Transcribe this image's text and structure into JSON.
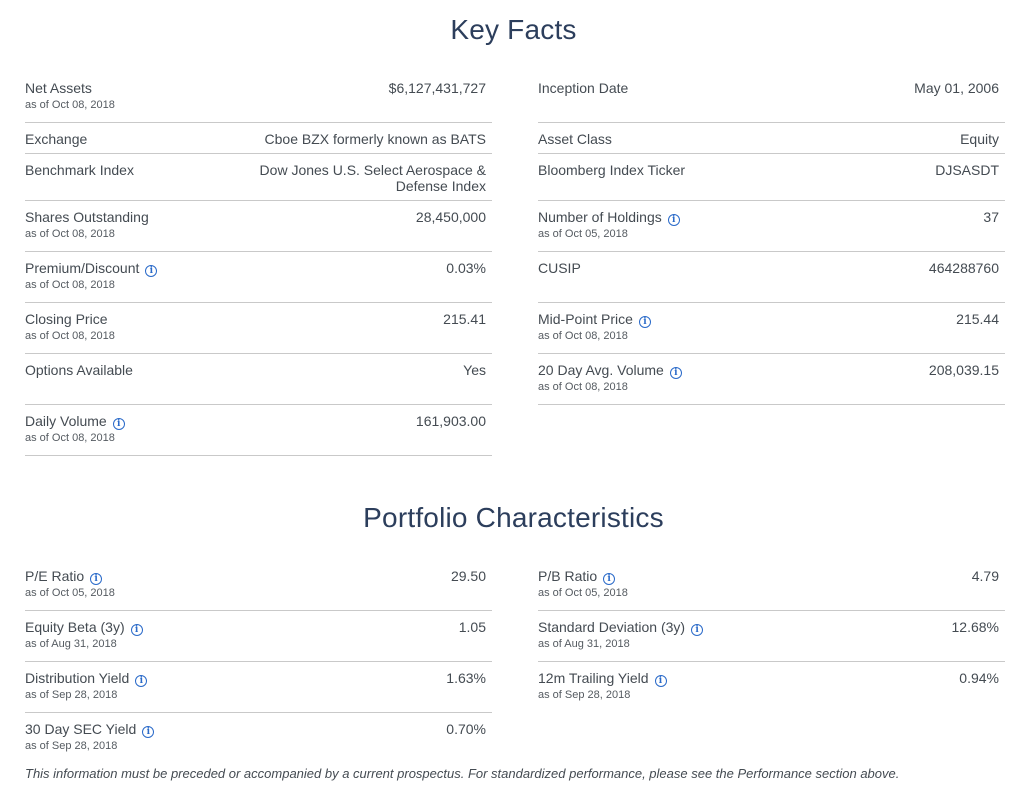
{
  "key_facts": {
    "title": "Key Facts",
    "left": [
      {
        "label": "Net Assets",
        "asof": "as of Oct 08, 2018",
        "value": "$6,127,431,727",
        "info": false
      },
      {
        "label": "Exchange",
        "asof": "",
        "value": "Cboe BZX formerly known as BATS",
        "info": false
      },
      {
        "label": "Benchmark Index",
        "asof": "",
        "value_line1": "Dow Jones U.S. Select Aerospace &",
        "value_line2": "Defense Index",
        "info": false
      },
      {
        "label": "Shares Outstanding",
        "asof": "as of Oct 08, 2018",
        "value": "28,450,000",
        "info": false
      },
      {
        "label": "Premium/Discount",
        "asof": "as of Oct 08, 2018",
        "value": "0.03%",
        "info": true
      },
      {
        "label": "Closing Price",
        "asof": "as of Oct 08, 2018",
        "value": "215.41",
        "info": false
      },
      {
        "label": "Options Available",
        "asof": "",
        "value": "Yes",
        "info": false
      },
      {
        "label": "Daily Volume",
        "asof": "as of Oct 08, 2018",
        "value": "161,903.00",
        "info": true
      }
    ],
    "right": [
      {
        "label": "Inception Date",
        "asof": "",
        "value": "May 01, 2006",
        "info": false
      },
      {
        "label": "Asset Class",
        "asof": "",
        "value": "Equity",
        "info": false
      },
      {
        "label": "Bloomberg Index Ticker",
        "asof": "",
        "value": "DJSASDT",
        "info": false
      },
      {
        "label": "Number of Holdings",
        "asof": "as of Oct 05, 2018",
        "value": "37",
        "info": true
      },
      {
        "label": "CUSIP",
        "asof": "",
        "value": "464288760",
        "info": false
      },
      {
        "label": "Mid-Point Price",
        "asof": "as of Oct 08, 2018",
        "value": "215.44",
        "info": true
      },
      {
        "label": "20 Day Avg. Volume",
        "asof": "as of Oct 08, 2018",
        "value": "208,039.15",
        "info": true
      }
    ]
  },
  "portfolio": {
    "title": "Portfolio Characteristics",
    "left": [
      {
        "label": "P/E Ratio",
        "asof": "as of Oct 05, 2018",
        "value": "29.50",
        "info": true
      },
      {
        "label": "Equity Beta (3y)",
        "asof": "as of Aug 31, 2018",
        "value": "1.05",
        "info": true
      },
      {
        "label": "Distribution Yield",
        "asof": "as of Sep 28, 2018",
        "value": "1.63%",
        "info": true
      },
      {
        "label": "30 Day SEC Yield",
        "asof": "as of Sep 28, 2018",
        "value": "0.70%",
        "info": true
      }
    ],
    "right": [
      {
        "label": "P/B Ratio",
        "asof": "as of Oct 05, 2018",
        "value": "4.79",
        "info": true
      },
      {
        "label": "Standard Deviation (3y)",
        "asof": "as of Aug 31, 2018",
        "value": "12.68%",
        "info": true
      },
      {
        "label": "12m Trailing Yield",
        "asof": "as of Sep 28, 2018",
        "value": "0.94%",
        "info": true
      }
    ]
  },
  "info_icon_glyph": "i",
  "disclaimer": "This information must be preceded or accompanied by a current prospectus. For standardized performance, please see the Performance section above."
}
